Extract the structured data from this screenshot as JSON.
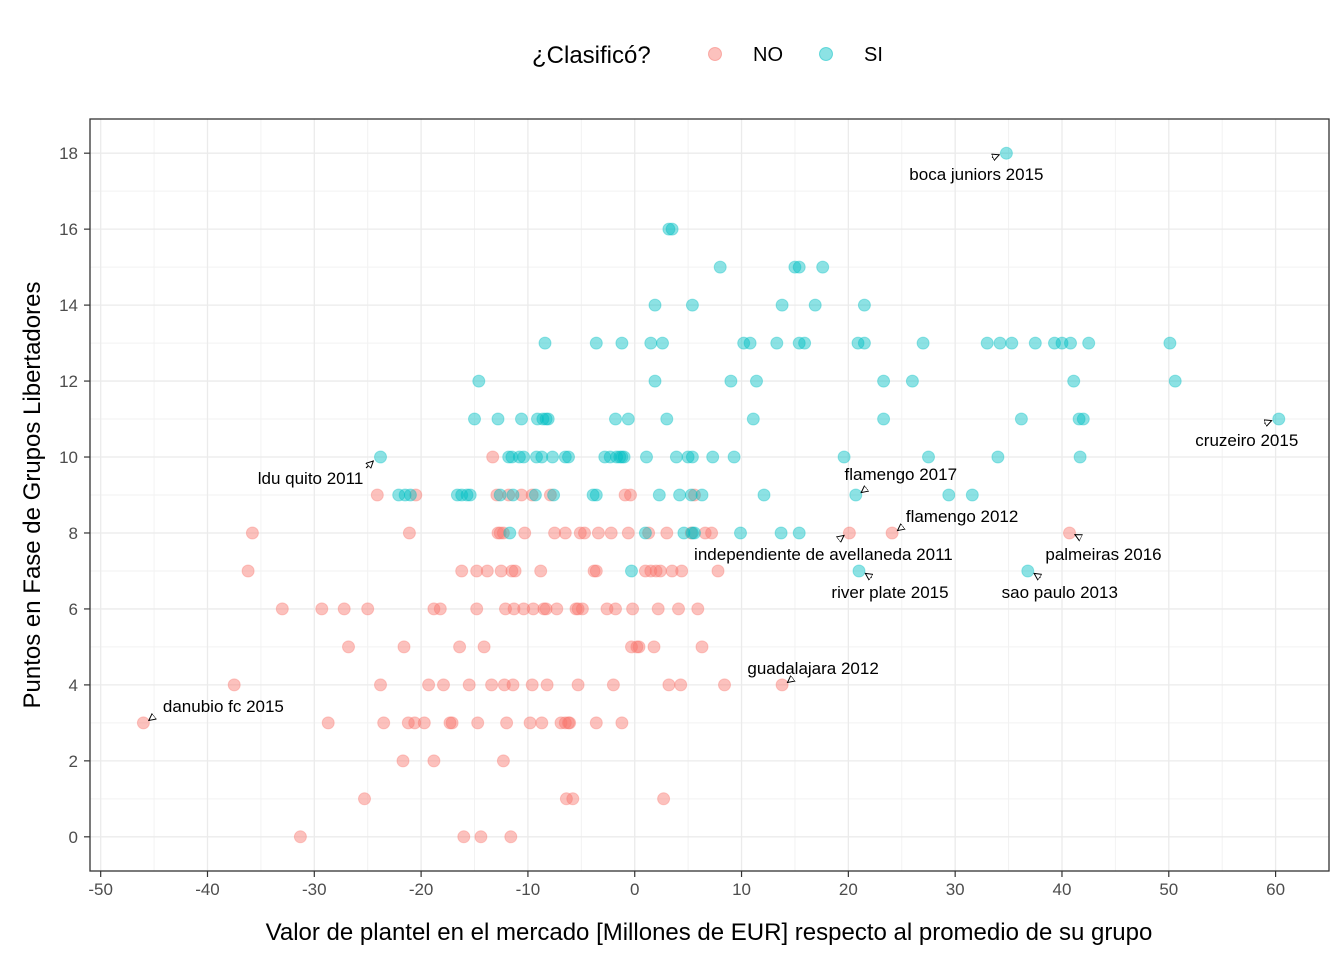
{
  "chart_data": {
    "type": "scatter",
    "title": "",
    "xlabel": "Valor de plantel en el mercado [Millones de EUR] respecto al promedio de su grupo",
    "ylabel": "Puntos en Fase de Grupos Libertadores",
    "xlim": [
      -51,
      65
    ],
    "ylim": [
      -0.9,
      18.9
    ],
    "x_ticks": [
      -50,
      -40,
      -30,
      -20,
      -10,
      0,
      10,
      20,
      30,
      40,
      50,
      60
    ],
    "y_ticks": [
      0,
      2,
      4,
      6,
      8,
      10,
      12,
      14,
      16,
      18
    ],
    "grid": true,
    "legend": {
      "title": "¿Clasificó?",
      "position": "top",
      "entries": [
        {
          "label": "NO",
          "color": "#F8766D"
        },
        {
          "label": "SI",
          "color": "#00BFC4"
        }
      ]
    },
    "series": [
      {
        "name": "NO",
        "color": "#F8766D",
        "points": [
          [
            -46,
            3
          ],
          [
            -37.5,
            4
          ],
          [
            -35.8,
            8
          ],
          [
            -36.2,
            7
          ],
          [
            -33,
            6
          ],
          [
            -31.3,
            0
          ],
          [
            -29.3,
            6
          ],
          [
            -28.7,
            3
          ],
          [
            -27.2,
            6
          ],
          [
            -26.8,
            5
          ],
          [
            -25.3,
            1
          ],
          [
            -25,
            6
          ],
          [
            -24.1,
            9
          ],
          [
            -23.8,
            4
          ],
          [
            -23.5,
            3
          ],
          [
            -21.7,
            2
          ],
          [
            -21.6,
            5
          ],
          [
            -21.2,
            3
          ],
          [
            -21.1,
            8
          ],
          [
            -20.5,
            9
          ],
          [
            -20.6,
            3
          ],
          [
            -19.7,
            3
          ],
          [
            -19.3,
            4
          ],
          [
            -18.8,
            2
          ],
          [
            -18.8,
            6
          ],
          [
            -18.2,
            6
          ],
          [
            -17.9,
            4
          ],
          [
            -17.3,
            3
          ],
          [
            -17.1,
            3
          ],
          [
            -16.4,
            5
          ],
          [
            -16.2,
            7
          ],
          [
            -16,
            0
          ],
          [
            -15.5,
            4
          ],
          [
            -14.8,
            7
          ],
          [
            -14.8,
            6
          ],
          [
            -14.7,
            3
          ],
          [
            -14.4,
            0
          ],
          [
            -14.1,
            5
          ],
          [
            -13.8,
            7
          ],
          [
            -13.4,
            4
          ],
          [
            -13.3,
            10
          ],
          [
            -12.9,
            9
          ],
          [
            -12.8,
            8
          ],
          [
            -12.6,
            8
          ],
          [
            -12.5,
            7
          ],
          [
            -12.3,
            8
          ],
          [
            -12.2,
            4
          ],
          [
            -12.1,
            6
          ],
          [
            -12.3,
            2
          ],
          [
            -12,
            3
          ],
          [
            -11.8,
            9
          ],
          [
            -11.6,
            0
          ],
          [
            -11.5,
            7
          ],
          [
            -11.4,
            4
          ],
          [
            -11.2,
            7
          ],
          [
            -11.3,
            6
          ],
          [
            -10.6,
            9
          ],
          [
            -10.4,
            6
          ],
          [
            -10.3,
            8
          ],
          [
            -9.8,
            3
          ],
          [
            -9.6,
            4
          ],
          [
            -9.5,
            6
          ],
          [
            -9.6,
            9
          ],
          [
            -8.8,
            7
          ],
          [
            -8.7,
            3
          ],
          [
            -8.5,
            6
          ],
          [
            -8.3,
            6
          ],
          [
            -8.2,
            4
          ],
          [
            -7.9,
            9
          ],
          [
            -7.3,
            6
          ],
          [
            -7.5,
            8
          ],
          [
            -6.9,
            3
          ],
          [
            -6.5,
            8
          ],
          [
            -6.5,
            3
          ],
          [
            -6.4,
            1
          ],
          [
            -6.2,
            3
          ],
          [
            -6.1,
            3
          ],
          [
            -5.8,
            1
          ],
          [
            -5.5,
            6
          ],
          [
            -5.3,
            6
          ],
          [
            -5.1,
            8
          ],
          [
            -5.3,
            4
          ],
          [
            -4.7,
            8
          ],
          [
            -4.9,
            6
          ],
          [
            -3.8,
            7
          ],
          [
            -3.6,
            7
          ],
          [
            -3.4,
            8
          ],
          [
            -3.6,
            3
          ],
          [
            -2.6,
            6
          ],
          [
            -2.2,
            8
          ],
          [
            -2,
            4
          ],
          [
            -1.8,
            6
          ],
          [
            -1.2,
            3
          ],
          [
            -0.9,
            9
          ],
          [
            -0.6,
            8
          ],
          [
            -0.4,
            9
          ],
          [
            -0.3,
            5
          ],
          [
            -0.2,
            6
          ],
          [
            0.2,
            5
          ],
          [
            0.4,
            5
          ],
          [
            1,
            7
          ],
          [
            1.3,
            8
          ],
          [
            1.5,
            7
          ],
          [
            1.8,
            5
          ],
          [
            2,
            7
          ],
          [
            2.2,
            6
          ],
          [
            2.4,
            7
          ],
          [
            2.7,
            1
          ],
          [
            3,
            8
          ],
          [
            3.2,
            4
          ],
          [
            3.5,
            7
          ],
          [
            4.1,
            6
          ],
          [
            4.4,
            7
          ],
          [
            4.3,
            4
          ],
          [
            5.3,
            8
          ],
          [
            5.6,
            9
          ],
          [
            5.9,
            6
          ],
          [
            6.3,
            5
          ],
          [
            6.6,
            8
          ],
          [
            7.2,
            8
          ],
          [
            7.8,
            7
          ],
          [
            8.4,
            4
          ],
          [
            13.8,
            4
          ],
          [
            20.1,
            8
          ],
          [
            24.1,
            8
          ],
          [
            40.7,
            8
          ]
        ]
      },
      {
        "name": "SI",
        "color": "#00BFC4",
        "points": [
          [
            34.8,
            18
          ],
          [
            3.2,
            16
          ],
          [
            3.5,
            16
          ],
          [
            8,
            15
          ],
          [
            15,
            15
          ],
          [
            15.4,
            15
          ],
          [
            17.6,
            15
          ],
          [
            1.9,
            14
          ],
          [
            5.4,
            14
          ],
          [
            13.8,
            14
          ],
          [
            16.9,
            14
          ],
          [
            21.5,
            14
          ],
          [
            -8.4,
            13
          ],
          [
            -3.6,
            13
          ],
          [
            -1.2,
            13
          ],
          [
            1.5,
            13
          ],
          [
            2.6,
            13
          ],
          [
            10.2,
            13
          ],
          [
            10.8,
            13
          ],
          [
            13.3,
            13
          ],
          [
            15.4,
            13
          ],
          [
            15.9,
            13
          ],
          [
            20.9,
            13
          ],
          [
            21.5,
            13
          ],
          [
            27,
            13
          ],
          [
            33,
            13
          ],
          [
            34.2,
            13
          ],
          [
            35.3,
            13
          ],
          [
            37.5,
            13
          ],
          [
            39.3,
            13
          ],
          [
            40,
            13
          ],
          [
            40.8,
            13
          ],
          [
            42.5,
            13
          ],
          [
            50.1,
            13
          ],
          [
            -14.6,
            12
          ],
          [
            1.9,
            12
          ],
          [
            9,
            12
          ],
          [
            11.4,
            12
          ],
          [
            23.3,
            12
          ],
          [
            26,
            12
          ],
          [
            41.1,
            12
          ],
          [
            50.6,
            12
          ],
          [
            -15,
            11
          ],
          [
            -12.8,
            11
          ],
          [
            -10.6,
            11
          ],
          [
            -9.1,
            11
          ],
          [
            -8.6,
            11
          ],
          [
            -8.1,
            11
          ],
          [
            -8.3,
            11
          ],
          [
            -1.8,
            11
          ],
          [
            -0.6,
            11
          ],
          [
            3,
            11
          ],
          [
            11.1,
            11
          ],
          [
            23.3,
            11
          ],
          [
            36.2,
            11
          ],
          [
            41.6,
            11
          ],
          [
            42,
            11
          ],
          [
            60.3,
            11
          ],
          [
            -23.8,
            10
          ],
          [
            -11.8,
            10
          ],
          [
            -11.5,
            10
          ],
          [
            -10.8,
            10
          ],
          [
            -10.4,
            10
          ],
          [
            -9.2,
            10
          ],
          [
            -8.7,
            10
          ],
          [
            -7.7,
            10
          ],
          [
            -6.5,
            10
          ],
          [
            -6.2,
            10
          ],
          [
            -2.8,
            10
          ],
          [
            -2.3,
            10
          ],
          [
            -1.7,
            10
          ],
          [
            -1.4,
            10
          ],
          [
            -1.2,
            10
          ],
          [
            -1,
            10
          ],
          [
            1.1,
            10
          ],
          [
            3.9,
            10
          ],
          [
            5,
            10
          ],
          [
            5.4,
            10
          ],
          [
            7.3,
            10
          ],
          [
            9.3,
            10
          ],
          [
            19.6,
            10
          ],
          [
            27.5,
            10
          ],
          [
            34,
            10
          ],
          [
            41.7,
            10
          ],
          [
            -22.1,
            9
          ],
          [
            -21.5,
            9
          ],
          [
            -21,
            9
          ],
          [
            -16.6,
            9
          ],
          [
            -16.2,
            9
          ],
          [
            -15.7,
            9
          ],
          [
            -15.4,
            9
          ],
          [
            -12.6,
            9
          ],
          [
            -11.4,
            9
          ],
          [
            -9.3,
            9
          ],
          [
            -7.6,
            9
          ],
          [
            -3.9,
            9
          ],
          [
            -3.6,
            9
          ],
          [
            2.3,
            9
          ],
          [
            4.2,
            9
          ],
          [
            5.3,
            9
          ],
          [
            6.3,
            9
          ],
          [
            12.1,
            9
          ],
          [
            20.7,
            9
          ],
          [
            29.4,
            9
          ],
          [
            31.6,
            9
          ],
          [
            -11.7,
            8
          ],
          [
            1,
            8
          ],
          [
            4.6,
            8
          ],
          [
            5.4,
            8
          ],
          [
            5.6,
            8
          ],
          [
            9.9,
            8
          ],
          [
            13.7,
            8
          ],
          [
            15.4,
            8
          ],
          [
            -0.3,
            7
          ],
          [
            21,
            7
          ],
          [
            36.8,
            7
          ]
        ]
      }
    ],
    "annotations": [
      {
        "label": "boca juniors 2015",
        "x": 34.8,
        "y": 18
      },
      {
        "label": "cruzeiro 2015",
        "x": 60.3,
        "y": 11
      },
      {
        "label": "ldu quito 2011",
        "x": -23.8,
        "y": 10
      },
      {
        "label": "flamengo 2017",
        "x": 20.7,
        "y": 9
      },
      {
        "label": "flamengo 2012",
        "x": 24.1,
        "y": 8
      },
      {
        "label": "independiente de avellaneda 2011",
        "x": 20.1,
        "y": 8
      },
      {
        "label": "palmeiras 2016",
        "x": 40.7,
        "y": 8
      },
      {
        "label": "river plate 2015",
        "x": 21,
        "y": 7
      },
      {
        "label": "sao paulo 2013",
        "x": 36.8,
        "y": 7
      },
      {
        "label": "guadalajara 2012",
        "x": 13.8,
        "y": 4
      },
      {
        "label": "danubio fc 2015",
        "x": -46,
        "y": 3
      }
    ]
  }
}
